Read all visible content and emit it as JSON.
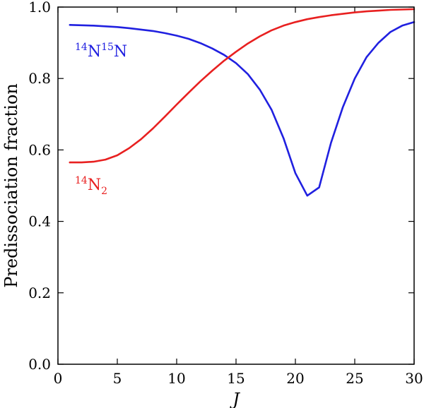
{
  "chart_data": {
    "type": "line",
    "xlabel": "J",
    "ylabel": "Predissociation fraction",
    "xlim": [
      0,
      30
    ],
    "ylim": [
      0.0,
      1.0
    ],
    "xticks": [
      "0",
      "5",
      "10",
      "15",
      "20",
      "25",
      "30"
    ],
    "yticks": [
      "0.0",
      "0.2",
      "0.4",
      "0.6",
      "0.8",
      "1.0"
    ],
    "grid": false,
    "series": [
      {
        "name_parts": [
          "14",
          "N",
          "15",
          "N"
        ],
        "color": "#2020e0",
        "x": [
          1,
          2,
          3,
          4,
          5,
          6,
          7,
          8,
          9,
          10,
          11,
          12,
          13,
          14,
          15,
          16,
          17,
          18,
          19,
          20,
          21,
          22,
          23,
          24,
          25,
          26,
          27,
          28,
          29,
          30
        ],
        "y": [
          0.95,
          0.949,
          0.948,
          0.946,
          0.944,
          0.941,
          0.937,
          0.933,
          0.927,
          0.92,
          0.911,
          0.899,
          0.884,
          0.866,
          0.843,
          0.812,
          0.769,
          0.712,
          0.633,
          0.535,
          0.472,
          0.495,
          0.62,
          0.72,
          0.8,
          0.86,
          0.9,
          0.93,
          0.948,
          0.958
        ]
      },
      {
        "name_parts": [
          "14",
          "N",
          "2"
        ],
        "color": "#e82020",
        "x": [
          1,
          2,
          3,
          4,
          5,
          6,
          7,
          8,
          9,
          10,
          11,
          12,
          13,
          14,
          15,
          16,
          17,
          18,
          19,
          20,
          21,
          22,
          23,
          24,
          25,
          26,
          27,
          28,
          29,
          30
        ],
        "y": [
          0.565,
          0.565,
          0.567,
          0.573,
          0.585,
          0.605,
          0.63,
          0.66,
          0.693,
          0.727,
          0.76,
          0.792,
          0.822,
          0.85,
          0.875,
          0.898,
          0.918,
          0.935,
          0.948,
          0.958,
          0.966,
          0.972,
          0.977,
          0.981,
          0.985,
          0.988,
          0.99,
          0.992,
          0.993,
          0.994
        ]
      }
    ]
  }
}
